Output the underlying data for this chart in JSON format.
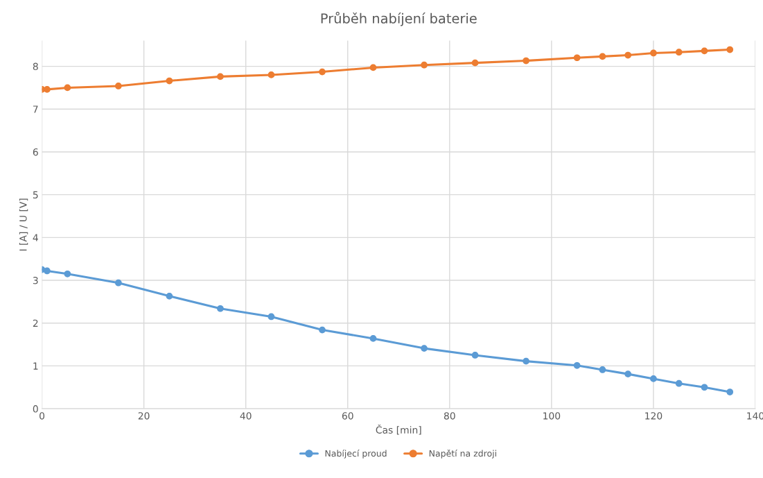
{
  "chart_data": {
    "type": "line",
    "title": "Průběh nabíjení baterie",
    "xlabel": "Čas [min]",
    "ylabel": "I [A] / U [V]",
    "x": [
      0,
      1,
      5,
      15,
      25,
      35,
      45,
      55,
      65,
      75,
      85,
      95,
      105,
      110,
      115,
      120,
      125,
      130,
      135
    ],
    "series": [
      {
        "name": "Nabíjecí proud",
        "color": "#5b9bd5",
        "values": [
          3.25,
          3.22,
          3.15,
          2.94,
          2.63,
          2.34,
          2.15,
          1.84,
          1.64,
          1.41,
          1.25,
          1.11,
          1.01,
          0.91,
          0.81,
          0.7,
          0.59,
          0.5,
          0.39
        ]
      },
      {
        "name": "Napětí na zdroji",
        "color": "#ed7d31",
        "values": [
          7.46,
          7.46,
          7.5,
          7.54,
          7.66,
          7.76,
          7.8,
          7.87,
          7.97,
          8.03,
          8.08,
          8.13,
          8.2,
          8.23,
          8.26,
          8.31,
          8.33,
          8.36,
          8.39
        ]
      }
    ],
    "xlim": [
      0,
      140
    ],
    "xticks": [
      0,
      20,
      40,
      60,
      80,
      100,
      120,
      140
    ],
    "ylim": [
      0,
      8.6
    ],
    "yticks": [
      0,
      1,
      2,
      3,
      4,
      5,
      6,
      7,
      8
    ],
    "grid": true,
    "legend": "bottom",
    "marker": "circle",
    "line_style": "solid"
  }
}
